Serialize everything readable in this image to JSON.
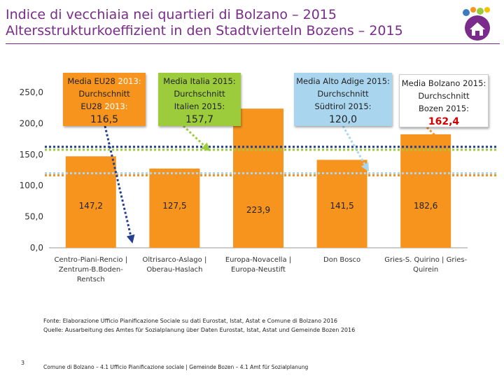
{
  "title_line1": "Indice di vecchiaia nei quartieri di Bolzano – 2015",
  "title_line2": "Altersstrukturkoeffizient in den Stadtvierteln Bozens – 2015",
  "colors": {
    "bar": "#f7941d",
    "eu_line": "#f7941d",
    "it_line": "#9ccc3c",
    "aa_line": "#a9d6ee",
    "bz_line": "#243f8f",
    "title": "#7a2b8c"
  },
  "callouts": {
    "eu": {
      "line1": "Media EU28",
      "line1_hl": "2013:",
      "line2": "Durchschnitt",
      "line3": "EU28",
      "line3_hl": "2013:",
      "value": "116,5"
    },
    "it": {
      "line1": "Media Italia 2015:",
      "line2": "Durchschnitt",
      "line3": "Italien 2015:",
      "value": "157,7"
    },
    "aa": {
      "line1": "Media Alto Adige 2015:",
      "line2": "Durchschnitt",
      "line3": "Südtirol 2015:",
      "value": "120,0"
    },
    "bz": {
      "line1": "Media Bolzano 2015:",
      "line2": "Durchschnitt",
      "line3": "Bozen 2015:",
      "value": "162,4"
    }
  },
  "chart_data": {
    "type": "bar",
    "categories": [
      [
        "Centro-Piani-Rencio |",
        "Zentrum-B.Boden-",
        "Rentsch"
      ],
      [
        "Oltrisarco-Aslago |",
        "Oberau-Haslach"
      ],
      [
        "Europa-Novacella |",
        "Europa-Neustift"
      ],
      [
        "Don Bosco"
      ],
      [
        "Gries-S. Quirino | Gries-",
        "Quirein"
      ]
    ],
    "values": [
      147.2,
      127.5,
      223.9,
      141.5,
      182.6
    ],
    "value_labels": [
      "147,2",
      "127,5",
      "223,9",
      "141,5",
      "182,6"
    ],
    "ylim": [
      0,
      250
    ],
    "yticks": [
      0,
      50,
      100,
      150,
      200,
      250
    ],
    "ytick_labels": [
      "0,0",
      "50,0",
      "100,0",
      "150,0",
      "200,0",
      "250,0"
    ],
    "reference_lines": [
      {
        "value": 116.5,
        "label": "116,5",
        "style": "dotted",
        "color": "#f7941d"
      },
      {
        "value": 157.7,
        "label": "157,7",
        "style": "dotted",
        "color": "#9ccc3c"
      },
      {
        "value": 120.0,
        "label": "120,0",
        "style": "dotted",
        "color": "#a9d6ee"
      },
      {
        "value": 162.4,
        "label": "162,4",
        "style": "dotted",
        "color": "#243f8f"
      }
    ]
  },
  "source_line1": "Fonte: Elaborazione Ufficio Pianificazione Sociale su dati Eurostat, Istat, Astat e Comune di Bolzano 2016",
  "source_line2": "Quelle: Ausarbeitung des Amtes für Sozialplanung über Daten Eurostat, Istat, Astat und Gemeinde Bozen 2016",
  "page_number": "3",
  "footer_text": "Comune di Bolzano – 4.1 Ufficio Pianificazione sociale | Gemeinde Bozen – 4.1 Amt für Sozialplanung"
}
